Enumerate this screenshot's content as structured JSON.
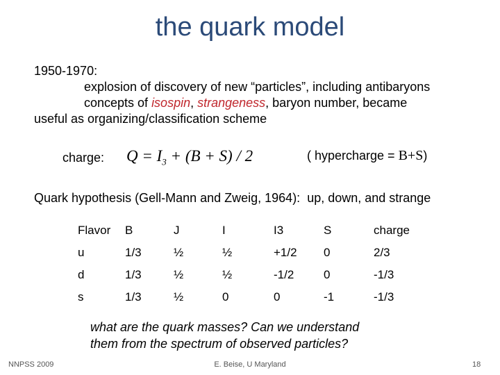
{
  "title": "the quark model",
  "body": {
    "period": "1950-1970:",
    "line1": "explosion of discovery of new “particles”, including antibaryons",
    "line2": {
      "start": "concepts of ",
      "isospin": "isospin",
      "comma": ", ",
      "strangeness": "strangeness",
      "end": ", baryon number, became"
    },
    "line3": "useful as organizing/classification scheme"
  },
  "charge": {
    "label": "charge:",
    "formula_main": "Q = I",
    "formula_sub": "3",
    "formula_rest": " + (B + S) / 2",
    "hyper_start": "( hypercharge = ",
    "hyper_expr": "B+S",
    "hyper_end": ")"
  },
  "hypothesis": "Quark hypothesis (Gell-Mann and Zweig, 1964):  up, down, and strange",
  "table": {
    "header": [
      "Flavor",
      "B",
      "J",
      "I",
      "I3",
      "S",
      "charge"
    ],
    "rows": [
      [
        "u",
        "1/3",
        "½",
        "½",
        "+1/2",
        "0",
        "2/3"
      ],
      [
        "d",
        "1/3",
        "½",
        "½",
        "-1/2",
        "0",
        "-1/3"
      ],
      [
        "s",
        "1/3",
        "½",
        "0",
        "0",
        "-1",
        "-1/3"
      ]
    ]
  },
  "question": {
    "line1": "what are the quark masses? Can we understand",
    "line2": "them from the spectrum of observed particles?"
  },
  "footer": {
    "left": "NNPSS 2009",
    "center": "E. Beise, U Maryland",
    "page": "18"
  }
}
